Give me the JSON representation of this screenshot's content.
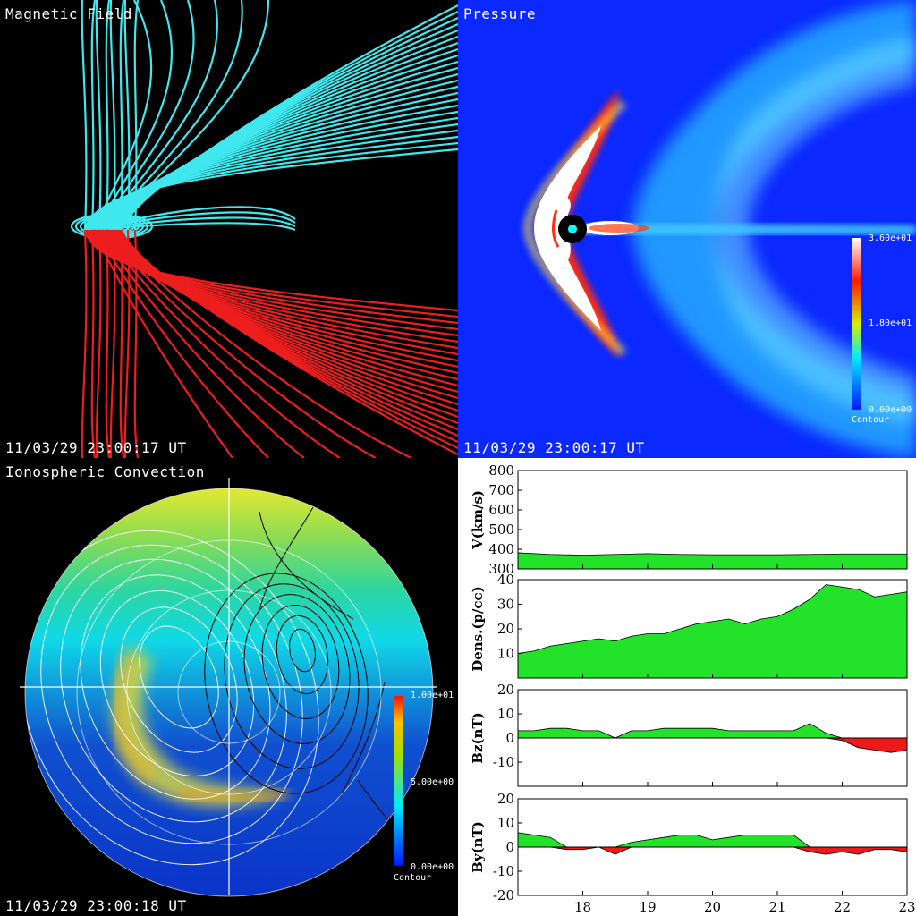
{
  "panels": {
    "magnetic": {
      "title": "Magnetic Field",
      "time": "11/03/29 23:00:17 UT",
      "colors": {
        "north": "#3fe8ee",
        "south": "#ee1e1e"
      }
    },
    "pressure": {
      "title": "Pressure",
      "time": "11/03/29 23:00:17 UT",
      "colorbar": {
        "max_label": "3.60e+01",
        "mid_label": "1.80e+01",
        "min_label": "0.00e+00",
        "caption": "Contour"
      }
    },
    "ionosphere": {
      "title": "Ionospheric Convection",
      "time": "11/03/29 23:00:18 UT",
      "colorbar": {
        "max_label": "1.00e+01",
        "mid_label": "5.00e+00",
        "min_label": "0.00e+00",
        "caption": "Contour"
      }
    }
  },
  "chart_data": [
    {
      "type": "area",
      "ylabel": "V(km/s)",
      "ylim": [
        300,
        800
      ],
      "yticks": [
        300,
        400,
        500,
        600,
        700,
        800
      ],
      "x": [
        17,
        17.5,
        18,
        18.5,
        19,
        19.5,
        20,
        20.5,
        21,
        21.5,
        22,
        22.5,
        23
      ],
      "values": [
        382,
        374,
        370,
        374,
        378,
        374,
        372,
        372,
        372,
        374,
        376,
        376,
        376
      ]
    },
    {
      "type": "area",
      "ylabel": "Dens.(p/cc)",
      "ylim": [
        0,
        40
      ],
      "yticks": [
        10,
        20,
        30,
        40
      ],
      "x": [
        17,
        17.25,
        17.5,
        17.75,
        18,
        18.25,
        18.5,
        18.75,
        19,
        19.25,
        19.5,
        19.75,
        20,
        20.25,
        20.5,
        20.75,
        21,
        21.25,
        21.5,
        21.75,
        22,
        22.25,
        22.5,
        22.75,
        23
      ],
      "values": [
        10,
        11,
        13,
        14,
        15,
        16,
        15,
        17,
        18,
        18,
        20,
        22,
        23,
        24,
        22,
        24,
        25,
        28,
        32,
        38,
        37,
        36,
        33,
        34,
        35
      ]
    },
    {
      "type": "area",
      "ylabel": "Bz(nT)",
      "ylim": [
        -20,
        20
      ],
      "yticks": [
        -10,
        0,
        10,
        20
      ],
      "x": [
        17,
        17.25,
        17.5,
        17.75,
        18,
        18.25,
        18.5,
        18.75,
        19,
        19.25,
        19.5,
        19.75,
        20,
        20.25,
        20.5,
        20.75,
        21,
        21.25,
        21.5,
        21.75,
        22,
        22.25,
        22.5,
        22.75,
        23
      ],
      "values": [
        3,
        3,
        4,
        4,
        3,
        3,
        0,
        3,
        3,
        4,
        4,
        4,
        4,
        3,
        3,
        3,
        3,
        3,
        6,
        2,
        -1,
        -4,
        -5,
        -6,
        -5
      ]
    },
    {
      "type": "area",
      "ylabel": "By(nT)",
      "ylim": [
        -20,
        20
      ],
      "yticks": [
        -20,
        -10,
        0,
        10,
        20
      ],
      "x": [
        17,
        17.25,
        17.5,
        17.75,
        18,
        18.25,
        18.5,
        18.75,
        19,
        19.25,
        19.5,
        19.75,
        20,
        20.25,
        20.5,
        20.75,
        21,
        21.25,
        21.5,
        21.75,
        22,
        22.25,
        22.5,
        22.75,
        23
      ],
      "values": [
        6,
        5,
        4,
        -1,
        -1,
        0,
        -3,
        2,
        3,
        4,
        5,
        5,
        3,
        4,
        5,
        5,
        5,
        5,
        -2,
        -3,
        -2,
        -3,
        -1,
        -1,
        -2
      ]
    }
  ],
  "x_ticks": [
    18,
    19,
    20,
    21,
    22,
    23
  ],
  "x_range": [
    17,
    23
  ]
}
